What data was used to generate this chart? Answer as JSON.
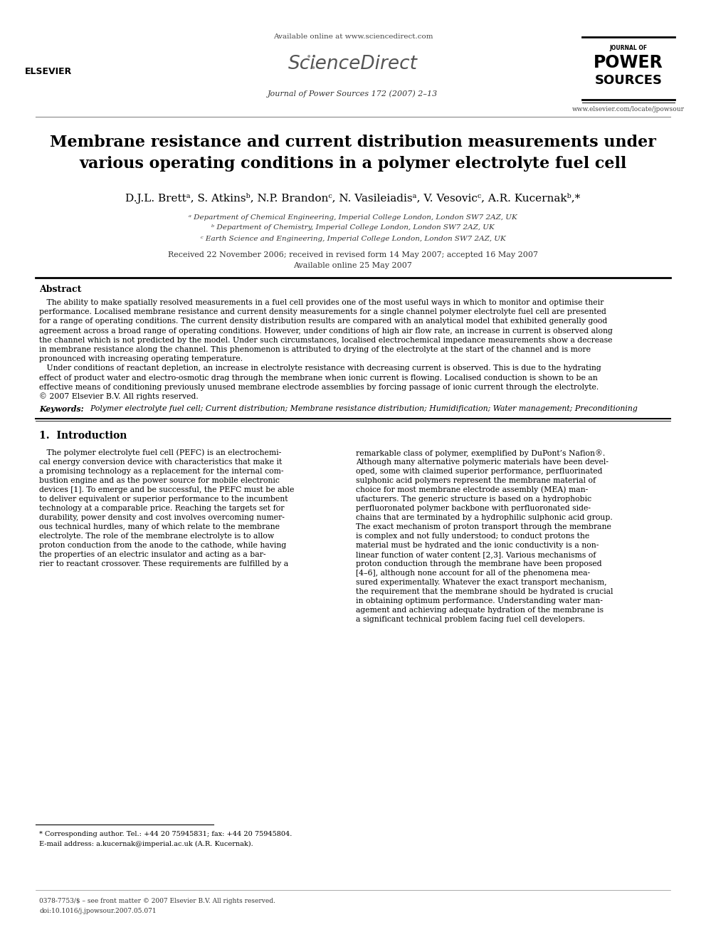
{
  "bg_color": "#ffffff",
  "header_available": "Available online at www.sciencedirect.com",
  "header_journal": "Journal of Power Sources 172 (2007) 2–13",
  "header_website": "www.elsevier.com/locate/jpowsour",
  "title": "Membrane resistance and current distribution measurements under\nvarious operating conditions in a polymer electrolyte fuel cell",
  "authors": "D.J.L. Brettᵃ, S. Atkinsᵇ, N.P. Brandonᶜ, N. Vasileiadisᵃ, V. Vesovicᶜ, A.R. Kucernakᵇ,*",
  "affiliations": [
    "ᵃ Department of Chemical Engineering, Imperial College London, London SW7 2AZ, UK",
    "ᵇ Department of Chemistry, Imperial College London, London SW7 2AZ, UK",
    "ᶜ Earth Science and Engineering, Imperial College London, London SW7 2AZ, UK"
  ],
  "received": "Received 22 November 2006; received in revised form 14 May 2007; accepted 16 May 2007",
  "available": "Available online 25 May 2007",
  "abstract_title": "Abstract",
  "abstract_lines": [
    "   The ability to make spatially resolved measurements in a fuel cell provides one of the most useful ways in which to monitor and optimise their",
    "performance. Localised membrane resistance and current density measurements for a single channel polymer electrolyte fuel cell are presented",
    "for a range of operating conditions. The current density distribution results are compared with an analytical model that exhibited generally good",
    "agreement across a broad range of operating conditions. However, under conditions of high air flow rate, an increase in current is observed along",
    "the channel which is not predicted by the model. Under such circumstances, localised electrochemical impedance measurements show a decrease",
    "in membrane resistance along the channel. This phenomenon is attributed to drying of the electrolyte at the start of the channel and is more",
    "pronounced with increasing operating temperature.",
    "   Under conditions of reactant depletion, an increase in electrolyte resistance with decreasing current is observed. This is due to the hydrating",
    "effect of product water and electro-osmotic drag through the membrane when ionic current is flowing. Localised conduction is shown to be an",
    "effective means of conditioning previously unused membrane electrode assemblies by forcing passage of ionic current through the electrolyte.",
    "© 2007 Elsevier B.V. All rights reserved."
  ],
  "keywords_label": "Keywords:",
  "keywords": "  Polymer electrolyte fuel cell; Current distribution; Membrane resistance distribution; Humidification; Water management; Preconditioning",
  "section1_title": "1.  Introduction",
  "left_intro_lines": [
    "   The polymer electrolyte fuel cell (PEFC) is an electrochemi-",
    "cal energy conversion device with characteristics that make it",
    "a promising technology as a replacement for the internal com-",
    "bustion engine and as the power source for mobile electronic",
    "devices [1]. To emerge and be successful, the PEFC must be able",
    "to deliver equivalent or superior performance to the incumbent",
    "technology at a comparable price. Reaching the targets set for",
    "durability, power density and cost involves overcoming numer-",
    "ous technical hurdles, many of which relate to the membrane",
    "electrolyte. The role of the membrane electrolyte is to allow",
    "proton conduction from the anode to the cathode, while having",
    "the properties of an electric insulator and acting as a bar-",
    "rier to reactant crossover. These requirements are fulfilled by a"
  ],
  "right_intro_lines": [
    "remarkable class of polymer, exemplified by DuPont’s Nafion®.",
    "Although many alternative polymeric materials have been devel-",
    "oped, some with claimed superior performance, perfluorinated",
    "sulphonic acid polymers represent the membrane material of",
    "choice for most membrane electrode assembly (MEA) man-",
    "ufacturers. The generic structure is based on a hydrophobic",
    "perfluoronated polymer backbone with perfluoronated side-",
    "chains that are terminated by a hydrophilic sulphonic acid group.",
    "The exact mechanism of proton transport through the membrane",
    "is complex and not fully understood; to conduct protons the",
    "material must be hydrated and the ionic conductivity is a non-",
    "linear function of water content [2,3]. Various mechanisms of",
    "proton conduction through the membrane have been proposed",
    "[4–6], although none account for all of the phenomena mea-",
    "sured experimentally. Whatever the exact transport mechanism,",
    "the requirement that the membrane should be hydrated is crucial",
    "in obtaining optimum performance. Understanding water man-",
    "agement and achieving adequate hydration of the membrane is",
    "a significant technical problem facing fuel cell developers."
  ],
  "footnote_star": "* Corresponding author. Tel.: +44 20 75945831; fax: +44 20 75945804.",
  "footnote_email": "E-mail address: a.kucernak@imperial.ac.uk (A.R. Kucernak).",
  "footer_copy": "0378-7753/$ – see front matter © 2007 Elsevier B.V. All rights reserved.",
  "footer_doi": "doi:10.1016/j.jpowsour.2007.05.071"
}
